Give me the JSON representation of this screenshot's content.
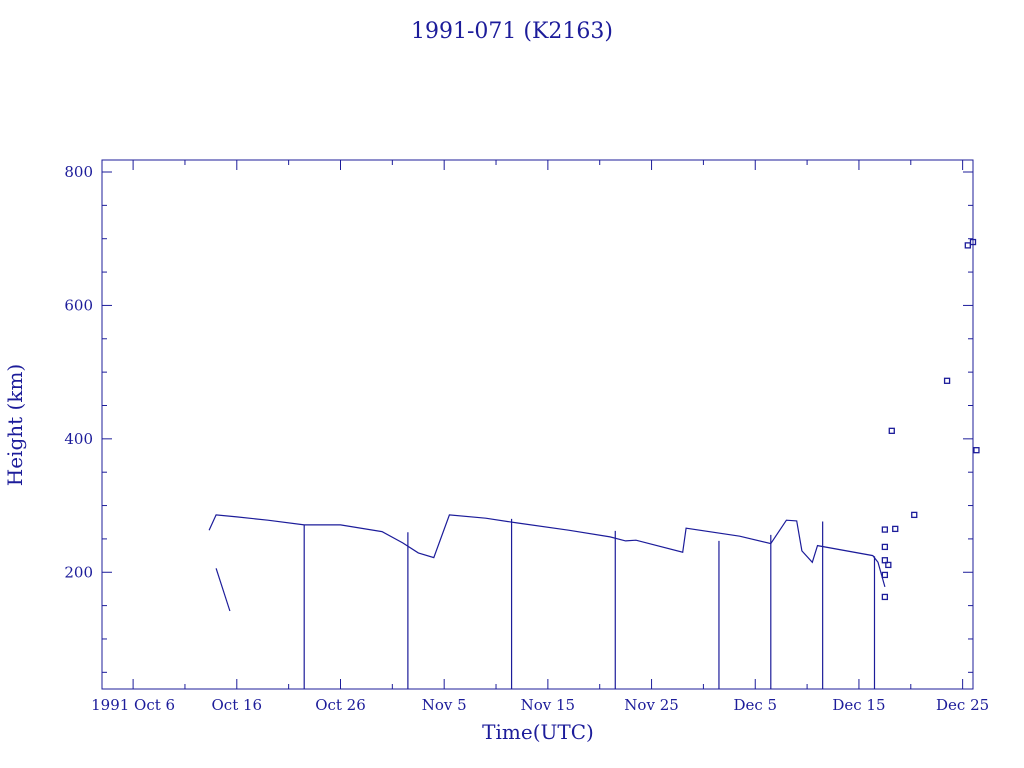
{
  "colors": {
    "ink": "#1c1c9a",
    "background": "#ffffff"
  },
  "chart_data": {
    "type": "line",
    "title": "1991-071 (K2163)",
    "xlabel": "Time(UTC)",
    "ylabel": "Height (km)",
    "xlim": [
      "1991-10-03",
      "1991-12-26"
    ],
    "ylim": [
      25,
      818
    ],
    "x_ticks": [
      {
        "date": "1991-10-06",
        "label": "1991 Oct  6"
      },
      {
        "date": "1991-10-16",
        "label": "Oct 16"
      },
      {
        "date": "1991-10-26",
        "label": "Oct 26"
      },
      {
        "date": "1991-11-05",
        "label": "Nov  5"
      },
      {
        "date": "1991-11-15",
        "label": "Nov 15"
      },
      {
        "date": "1991-11-25",
        "label": "Nov 25"
      },
      {
        "date": "1991-12-05",
        "label": "Dec  5"
      },
      {
        "date": "1991-12-15",
        "label": "Dec 15"
      },
      {
        "date": "1991-12-25",
        "label": "Dec 25"
      }
    ],
    "y_ticks": [
      200,
      400,
      600,
      800
    ],
    "grid": false,
    "series": [
      {
        "kind": "line",
        "points": [
          [
            "1991-10-13 08:00",
            263
          ],
          [
            "1991-10-14 00:00",
            286
          ],
          [
            "1991-10-16 00:00",
            283
          ],
          [
            "1991-10-19 00:00",
            278
          ],
          [
            "1991-10-22 12:00",
            271
          ],
          [
            "1991-10-26 00:00",
            271
          ],
          [
            "1991-10-30 00:00",
            261
          ],
          [
            "1991-11-01 00:00",
            244
          ],
          [
            "1991-11-02 12:00",
            229
          ],
          [
            "1991-11-04 00:00",
            222
          ],
          [
            "1991-11-05 12:00",
            286
          ],
          [
            "1991-11-09 00:00",
            281
          ],
          [
            "1991-11-12 00:00",
            274
          ],
          [
            "1991-11-17 00:00",
            263
          ],
          [
            "1991-11-21 00:00",
            253
          ],
          [
            "1991-11-22 12:00",
            247
          ],
          [
            "1991-11-23 12:00",
            248
          ],
          [
            "1991-11-28 00:00",
            230
          ],
          [
            "1991-11-28 08:00",
            266
          ],
          [
            "1991-12-03 12:00",
            254
          ],
          [
            "1991-12-06 12:00",
            243
          ],
          [
            "1991-12-08 00:00",
            278
          ],
          [
            "1991-12-09 00:00",
            277
          ],
          [
            "1991-12-09 12:00",
            232
          ],
          [
            "1991-12-10 12:00",
            215
          ],
          [
            "1991-12-11 00:00",
            240
          ],
          [
            "1991-12-16 08:00",
            225
          ],
          [
            "1991-12-16 20:00",
            215
          ],
          [
            "1991-12-17 12:00",
            178
          ]
        ]
      },
      {
        "kind": "line",
        "points": [
          [
            "1991-10-14 00:00",
            206
          ],
          [
            "1991-10-15 08:00",
            142
          ]
        ]
      },
      {
        "kind": "stem",
        "dates": [
          "1991-10-22 12:00",
          "1991-11-01 12:00",
          "1991-11-11 12:00",
          "1991-11-21 12:00",
          "1991-12-01 12:00",
          "1991-12-06 12:00",
          "1991-12-11 12:00",
          "1991-12-16 12:00"
        ],
        "values": [
          271,
          260,
          280,
          262,
          247,
          256,
          276,
          224
        ]
      },
      {
        "kind": "scatter",
        "marker": "square",
        "points": [
          [
            "1991-12-17 12:00",
            163
          ],
          [
            "1991-12-17 12:00",
            196
          ],
          [
            "1991-12-17 12:00",
            218
          ],
          [
            "1991-12-17 12:00",
            238
          ],
          [
            "1991-12-17 12:00",
            264
          ],
          [
            "1991-12-17 20:00",
            211
          ],
          [
            "1991-12-18 04:00",
            412
          ],
          [
            "1991-12-18 12:00",
            265
          ],
          [
            "1991-12-20 08:00",
            286
          ],
          [
            "1991-12-23 12:00",
            487
          ],
          [
            "1991-12-25 12:00",
            690
          ],
          [
            "1991-12-26 00:00",
            695
          ],
          [
            "1991-12-26 08:00",
            383
          ]
        ]
      }
    ]
  }
}
